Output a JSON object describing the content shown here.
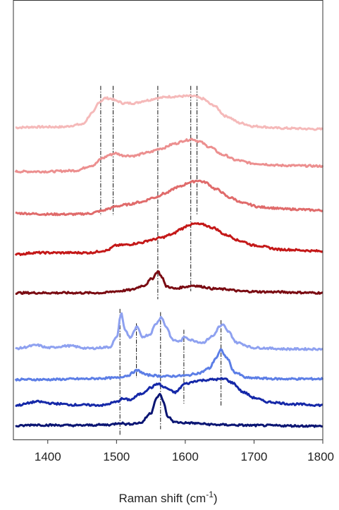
{
  "chart_data": {
    "type": "line",
    "title": "",
    "xlabel": "Raman shift (cm",
    "xlabel_sup": "-1",
    "xlabel_close": ")",
    "ylabel": "",
    "xlim": [
      1350,
      1800
    ],
    "xticks": [
      1400,
      1500,
      1600,
      1700,
      1800
    ],
    "xtick_labels": [
      "1400",
      "1500",
      "1600",
      "1700",
      "1800"
    ],
    "y_axis_ticks": false,
    "grid": false,
    "legend": "none",
    "series": [
      {
        "color": "#f5b9b9",
        "offset": 9.2,
        "points": [
          [
            1355,
            0.1
          ],
          [
            1380,
            0.12
          ],
          [
            1420,
            0.12
          ],
          [
            1450,
            0.2
          ],
          [
            1465,
            0.55
          ],
          [
            1475,
            0.9
          ],
          [
            1484,
            1.02
          ],
          [
            1492,
            1.0
          ],
          [
            1500,
            0.93
          ],
          [
            1510,
            0.86
          ],
          [
            1525,
            0.86
          ],
          [
            1545,
            0.95
          ],
          [
            1560,
            1.02
          ],
          [
            1575,
            1.06
          ],
          [
            1590,
            1.07
          ],
          [
            1600,
            1.08
          ],
          [
            1612,
            1.08
          ],
          [
            1625,
            1.0
          ],
          [
            1640,
            0.8
          ],
          [
            1660,
            0.45
          ],
          [
            1680,
            0.24
          ],
          [
            1700,
            0.14
          ],
          [
            1740,
            0.08
          ],
          [
            1800,
            0.05
          ]
        ]
      },
      {
        "color": "#ec8f8f",
        "offset": 7.9,
        "points": [
          [
            1355,
            0.03
          ],
          [
            1400,
            0.03
          ],
          [
            1440,
            0.06
          ],
          [
            1465,
            0.22
          ],
          [
            1480,
            0.45
          ],
          [
            1490,
            0.55
          ],
          [
            1498,
            0.6
          ],
          [
            1510,
            0.53
          ],
          [
            1525,
            0.52
          ],
          [
            1545,
            0.62
          ],
          [
            1565,
            0.75
          ],
          [
            1585,
            0.9
          ],
          [
            1600,
            1.0
          ],
          [
            1610,
            1.04
          ],
          [
            1620,
            0.97
          ],
          [
            1635,
            0.8
          ],
          [
            1655,
            0.55
          ],
          [
            1675,
            0.38
          ],
          [
            1700,
            0.28
          ],
          [
            1740,
            0.22
          ],
          [
            1800,
            0.2
          ]
        ]
      },
      {
        "color": "#e06b6b",
        "offset": 6.6,
        "points": [
          [
            1355,
            0.03
          ],
          [
            1400,
            0.0
          ],
          [
            1440,
            0.0
          ],
          [
            1460,
            0.02
          ],
          [
            1478,
            0.1
          ],
          [
            1490,
            0.18
          ],
          [
            1500,
            0.25
          ],
          [
            1515,
            0.3
          ],
          [
            1535,
            0.38
          ],
          [
            1555,
            0.52
          ],
          [
            1570,
            0.65
          ],
          [
            1590,
            0.85
          ],
          [
            1608,
            1.0
          ],
          [
            1618,
            1.05
          ],
          [
            1628,
            1.0
          ],
          [
            1645,
            0.78
          ],
          [
            1665,
            0.52
          ],
          [
            1685,
            0.34
          ],
          [
            1710,
            0.22
          ],
          [
            1750,
            0.16
          ],
          [
            1800,
            0.12
          ]
        ]
      },
      {
        "color": "#c41818",
        "offset": 5.35,
        "points": [
          [
            1355,
            0.0
          ],
          [
            1380,
            0.05
          ],
          [
            1420,
            0.05
          ],
          [
            1460,
            0.05
          ],
          [
            1485,
            0.12
          ],
          [
            1500,
            0.28
          ],
          [
            1515,
            0.3
          ],
          [
            1535,
            0.36
          ],
          [
            1550,
            0.45
          ],
          [
            1565,
            0.52
          ],
          [
            1580,
            0.62
          ],
          [
            1595,
            0.8
          ],
          [
            1605,
            0.92
          ],
          [
            1615,
            0.95
          ],
          [
            1625,
            0.93
          ],
          [
            1640,
            0.83
          ],
          [
            1660,
            0.6
          ],
          [
            1680,
            0.42
          ],
          [
            1700,
            0.28
          ],
          [
            1740,
            0.15
          ],
          [
            1800,
            0.1
          ]
        ]
      },
      {
        "color": "#7a0b12",
        "offset": 4.1,
        "points": [
          [
            1355,
            0.05
          ],
          [
            1400,
            0.05
          ],
          [
            1480,
            0.05
          ],
          [
            1500,
            0.1
          ],
          [
            1520,
            0.14
          ],
          [
            1540,
            0.28
          ],
          [
            1552,
            0.5
          ],
          [
            1560,
            0.72
          ],
          [
            1566,
            0.55
          ],
          [
            1572,
            0.26
          ],
          [
            1585,
            0.18
          ],
          [
            1600,
            0.24
          ],
          [
            1612,
            0.28
          ],
          [
            1625,
            0.24
          ],
          [
            1640,
            0.18
          ],
          [
            1660,
            0.16
          ],
          [
            1680,
            0.1
          ],
          [
            1720,
            0.08
          ],
          [
            1800,
            0.05
          ]
        ]
      },
      {
        "color": "#8ea1f0",
        "offset": 2.3,
        "points": [
          [
            1355,
            0.12
          ],
          [
            1385,
            0.22
          ],
          [
            1400,
            0.14
          ],
          [
            1430,
            0.2
          ],
          [
            1460,
            0.12
          ],
          [
            1490,
            0.16
          ],
          [
            1500,
            0.45
          ],
          [
            1507,
            1.22
          ],
          [
            1512,
            0.7
          ],
          [
            1520,
            0.46
          ],
          [
            1530,
            0.78
          ],
          [
            1537,
            0.48
          ],
          [
            1548,
            0.55
          ],
          [
            1558,
            0.9
          ],
          [
            1565,
            1.1
          ],
          [
            1572,
            0.8
          ],
          [
            1582,
            0.38
          ],
          [
            1592,
            0.34
          ],
          [
            1600,
            0.48
          ],
          [
            1608,
            0.38
          ],
          [
            1625,
            0.3
          ],
          [
            1640,
            0.5
          ],
          [
            1650,
            0.8
          ],
          [
            1655,
            0.85
          ],
          [
            1662,
            0.65
          ],
          [
            1675,
            0.3
          ],
          [
            1700,
            0.14
          ],
          [
            1750,
            0.1
          ],
          [
            1800,
            0.1
          ]
        ]
      },
      {
        "color": "#5c7ee6",
        "offset": 1.45,
        "points": [
          [
            1355,
            0.0
          ],
          [
            1400,
            0.0
          ],
          [
            1450,
            0.02
          ],
          [
            1500,
            0.05
          ],
          [
            1515,
            0.12
          ],
          [
            1530,
            0.28
          ],
          [
            1545,
            0.14
          ],
          [
            1570,
            0.1
          ],
          [
            1600,
            0.12
          ],
          [
            1620,
            0.2
          ],
          [
            1635,
            0.35
          ],
          [
            1645,
            0.68
          ],
          [
            1652,
            0.92
          ],
          [
            1660,
            0.68
          ],
          [
            1672,
            0.22
          ],
          [
            1690,
            0.05
          ],
          [
            1740,
            0.02
          ],
          [
            1800,
            0.02
          ]
        ]
      },
      {
        "color": "#1528a8",
        "offset": 0.6,
        "points": [
          [
            1355,
            0.05
          ],
          [
            1385,
            0.16
          ],
          [
            1410,
            0.1
          ],
          [
            1440,
            0.06
          ],
          [
            1480,
            0.05
          ],
          [
            1500,
            0.15
          ],
          [
            1508,
            0.25
          ],
          [
            1520,
            0.22
          ],
          [
            1535,
            0.4
          ],
          [
            1550,
            0.6
          ],
          [
            1560,
            0.72
          ],
          [
            1570,
            0.6
          ],
          [
            1585,
            0.45
          ],
          [
            1600,
            0.72
          ],
          [
            1620,
            0.82
          ],
          [
            1640,
            0.85
          ],
          [
            1658,
            0.87
          ],
          [
            1668,
            0.75
          ],
          [
            1685,
            0.45
          ],
          [
            1700,
            0.28
          ],
          [
            1720,
            0.15
          ],
          [
            1760,
            0.08
          ],
          [
            1800,
            0.05
          ]
        ]
      },
      {
        "color": "#0a1573",
        "offset": 0.0,
        "points": [
          [
            1355,
            0.0
          ],
          [
            1380,
            0.04
          ],
          [
            1400,
            0.03
          ],
          [
            1440,
            0.02
          ],
          [
            1490,
            0.04
          ],
          [
            1505,
            0.1
          ],
          [
            1515,
            0.06
          ],
          [
            1535,
            0.1
          ],
          [
            1550,
            0.4
          ],
          [
            1558,
            0.88
          ],
          [
            1563,
            0.98
          ],
          [
            1568,
            0.78
          ],
          [
            1574,
            0.3
          ],
          [
            1585,
            0.12
          ],
          [
            1600,
            0.1
          ],
          [
            1650,
            0.04
          ],
          [
            1700,
            0.02
          ],
          [
            1800,
            0.0
          ]
        ]
      }
    ],
    "reference_lines": [
      {
        "x": 1477,
        "y_range": [
          6.55,
          10.6
        ]
      },
      {
        "x": 1495,
        "y_range": [
          6.55,
          10.6
        ]
      },
      {
        "x": 1560,
        "y_range": [
          3.95,
          10.6
        ]
      },
      {
        "x": 1608,
        "y_range": [
          4.2,
          10.6
        ]
      },
      {
        "x": 1617,
        "y_range": [
          6.6,
          10.6
        ]
      },
      {
        "x": 1505,
        "y_range": [
          -0.3,
          3.65
        ]
      },
      {
        "x": 1529,
        "y_range": [
          1.5,
          3.2
        ]
      },
      {
        "x": 1564,
        "y_range": [
          -0.1,
          3.55
        ]
      },
      {
        "x": 1598,
        "y_range": [
          0.7,
          3.0
        ]
      },
      {
        "x": 1652,
        "y_range": [
          0.6,
          3.3
        ]
      }
    ]
  }
}
